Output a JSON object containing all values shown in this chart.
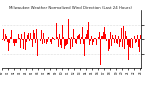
{
  "title": "Milwaukee Weather Normalized Wind Direction (Last 24 Hours)",
  "bg_color": "#ffffff",
  "line_color": "#ff0000",
  "grid_color": "#aaaaaa",
  "ylim": [
    -180,
    180
  ],
  "yticks": [
    -90,
    0,
    90
  ],
  "num_points": 288,
  "seed": 42
}
